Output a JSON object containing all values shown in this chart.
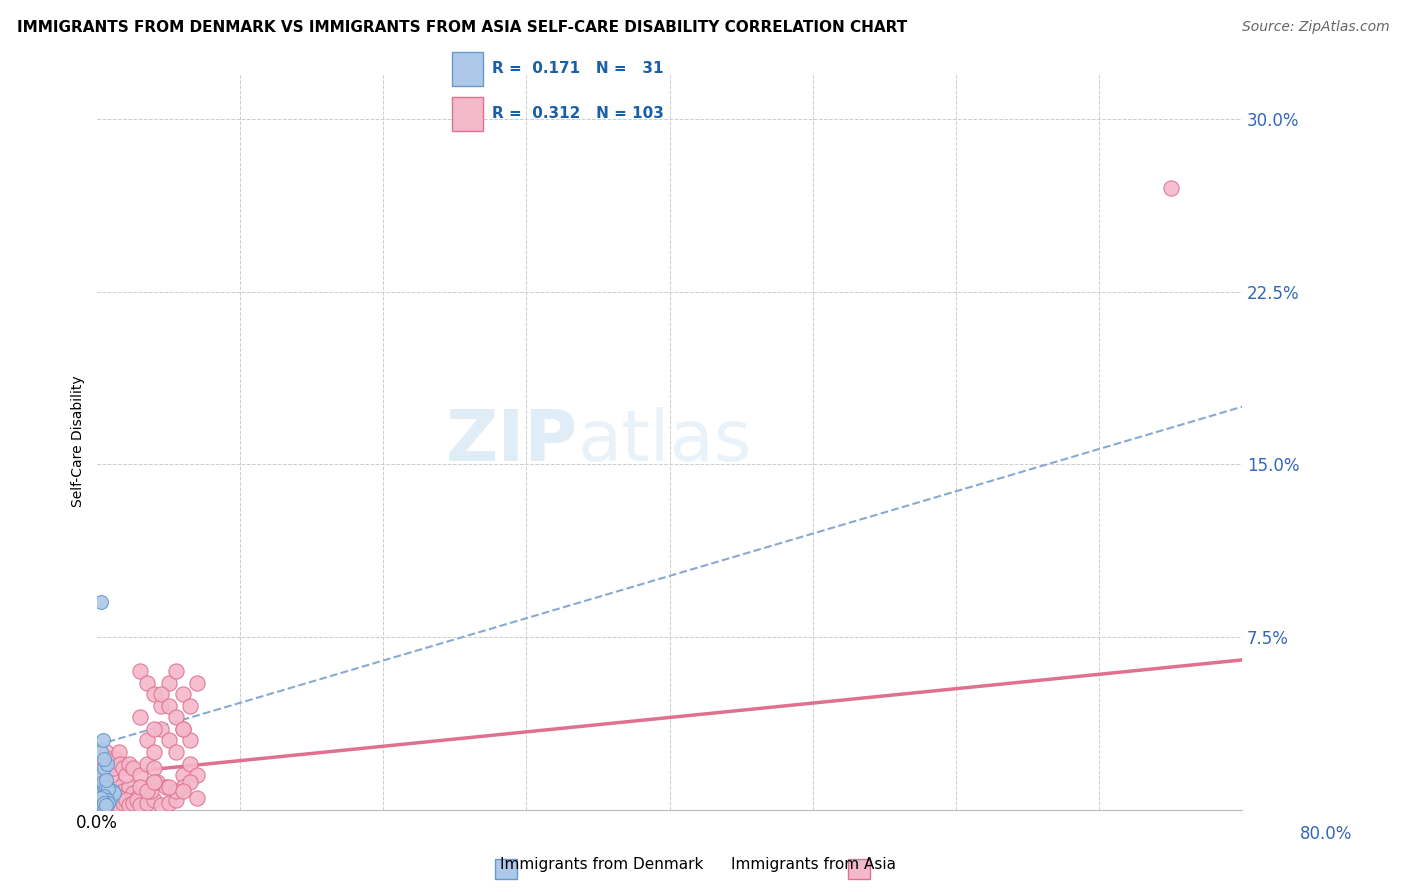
{
  "title": "IMMIGRANTS FROM DENMARK VS IMMIGRANTS FROM ASIA SELF-CARE DISABILITY CORRELATION CHART",
  "source": "Source: ZipAtlas.com",
  "ylabel": "Self-Care Disability",
  "xlim": [
    0.0,
    0.8
  ],
  "ylim": [
    0.0,
    0.32
  ],
  "yticks": [
    0.0,
    0.075,
    0.15,
    0.225,
    0.3
  ],
  "ytick_labels": [
    "",
    "7.5%",
    "15.0%",
    "22.5%",
    "30.0%"
  ],
  "xticks": [
    0.0,
    0.1,
    0.2,
    0.3,
    0.4,
    0.5,
    0.6,
    0.7,
    0.8
  ],
  "denmark_color": "#adc8e8",
  "denmark_edge": "#6699cc",
  "asia_color": "#f4b8cb",
  "asia_edge": "#e07090",
  "trend_denmark_color": "#88aad0",
  "trend_asia_color": "#e07090",
  "R_denmark": 0.171,
  "N_denmark": 31,
  "R_asia": 0.312,
  "N_asia": 103,
  "legend_R_color": "#1a5fa8",
  "denmark_x": [
    0.003,
    0.004,
    0.005,
    0.006,
    0.007,
    0.008,
    0.009,
    0.01,
    0.011,
    0.012,
    0.003,
    0.004,
    0.005,
    0.006,
    0.007,
    0.008,
    0.003,
    0.004,
    0.005,
    0.006,
    0.003,
    0.004,
    0.005,
    0.006,
    0.007,
    0.008,
    0.003,
    0.004,
    0.005,
    0.006,
    0.003
  ],
  "denmark_y": [
    0.008,
    0.006,
    0.01,
    0.005,
    0.008,
    0.006,
    0.007,
    0.005,
    0.008,
    0.007,
    0.015,
    0.012,
    0.018,
    0.01,
    0.02,
    0.009,
    0.025,
    0.03,
    0.022,
    0.013,
    0.003,
    0.004,
    0.006,
    0.003,
    0.004,
    0.003,
    0.005,
    0.002,
    0.003,
    0.002,
    0.09
  ],
  "asia_x": [
    0.002,
    0.003,
    0.004,
    0.005,
    0.006,
    0.007,
    0.008,
    0.009,
    0.01,
    0.011,
    0.012,
    0.013,
    0.014,
    0.015,
    0.016,
    0.018,
    0.02,
    0.022,
    0.025,
    0.028,
    0.003,
    0.004,
    0.005,
    0.006,
    0.007,
    0.008,
    0.009,
    0.01,
    0.011,
    0.012,
    0.013,
    0.015,
    0.016,
    0.018,
    0.02,
    0.022,
    0.025,
    0.03,
    0.035,
    0.04,
    0.003,
    0.004,
    0.005,
    0.006,
    0.007,
    0.008,
    0.009,
    0.01,
    0.011,
    0.012,
    0.013,
    0.014,
    0.015,
    0.016,
    0.018,
    0.02,
    0.022,
    0.025,
    0.028,
    0.03,
    0.035,
    0.04,
    0.045,
    0.05,
    0.055,
    0.03,
    0.035,
    0.04,
    0.045,
    0.05,
    0.055,
    0.06,
    0.065,
    0.07,
    0.035,
    0.04,
    0.045,
    0.05,
    0.055,
    0.06,
    0.065,
    0.06,
    0.065,
    0.07,
    0.06,
    0.065,
    0.03,
    0.04,
    0.045,
    0.05,
    0.055,
    0.06,
    0.038,
    0.042,
    0.048,
    0.055,
    0.03,
    0.035,
    0.04,
    0.05,
    0.06,
    0.07,
    0.75
  ],
  "asia_y": [
    0.01,
    0.008,
    0.005,
    0.012,
    0.007,
    0.006,
    0.01,
    0.005,
    0.008,
    0.007,
    0.006,
    0.009,
    0.005,
    0.01,
    0.007,
    0.008,
    0.006,
    0.01,
    0.007,
    0.005,
    0.02,
    0.018,
    0.015,
    0.025,
    0.02,
    0.018,
    0.022,
    0.015,
    0.02,
    0.018,
    0.022,
    0.025,
    0.02,
    0.018,
    0.015,
    0.02,
    0.018,
    0.015,
    0.02,
    0.018,
    0.003,
    0.004,
    0.002,
    0.005,
    0.003,
    0.004,
    0.002,
    0.003,
    0.004,
    0.002,
    0.003,
    0.004,
    0.002,
    0.005,
    0.003,
    0.004,
    0.002,
    0.003,
    0.004,
    0.002,
    0.003,
    0.004,
    0.002,
    0.003,
    0.004,
    0.06,
    0.055,
    0.05,
    0.045,
    0.055,
    0.06,
    0.05,
    0.045,
    0.055,
    0.03,
    0.025,
    0.035,
    0.03,
    0.025,
    0.035,
    0.03,
    0.015,
    0.02,
    0.015,
    0.01,
    0.012,
    0.04,
    0.035,
    0.05,
    0.045,
    0.04,
    0.035,
    0.008,
    0.012,
    0.01,
    0.008,
    0.01,
    0.008,
    0.012,
    0.01,
    0.008,
    0.005,
    0.27
  ]
}
